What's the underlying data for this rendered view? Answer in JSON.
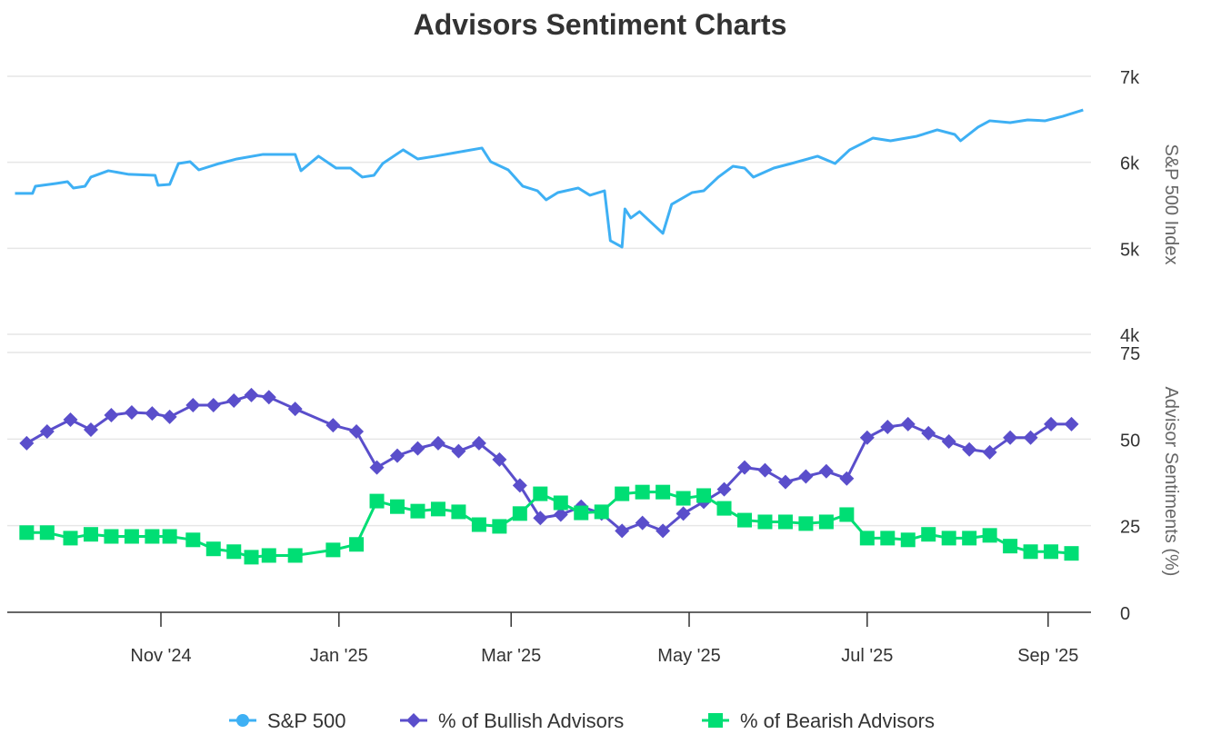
{
  "chart_data": {
    "type": "line",
    "title": "Advisors Sentiment Charts",
    "x_unit": "days since 2024-11-01",
    "x_ticks": [
      {
        "day": 0,
        "label": "Nov '24"
      },
      {
        "day": 61,
        "label": "Jan '25"
      },
      {
        "day": 120,
        "label": "Mar '25"
      },
      {
        "day": 181,
        "label": "May '25"
      },
      {
        "day": 242,
        "label": "Jul '25"
      },
      {
        "day": 304,
        "label": "Sep '25"
      }
    ],
    "panels": [
      {
        "ylabel": "S&P 500 Index",
        "ylim": [
          4000,
          7000
        ],
        "y_ticks": [
          {
            "v": 7000,
            "label": "7k"
          },
          {
            "v": 6000,
            "label": "6k"
          },
          {
            "v": 5000,
            "label": "5k"
          },
          {
            "v": 4000,
            "label": "4k"
          }
        ],
        "series": [
          {
            "name": "S&P 500",
            "color": "#3eb0f4",
            "marker": "none",
            "x": [
              -50,
              -44,
              -43,
              -36,
              -32,
              -30,
              -26,
              -24,
              -18,
              -11,
              -2,
              -1,
              3,
              6,
              10,
              13,
              20,
              26,
              35,
              46,
              48,
              54,
              60,
              65,
              69,
              73,
              76,
              83,
              88,
              94,
              101,
              110,
              113,
              119,
              124,
              129,
              132,
              136,
              143,
              147,
              152,
              154,
              158,
              159,
              161,
              164,
              168,
              172,
              175,
              182,
              186,
              191,
              196,
              200,
              203,
              210,
              216,
              225,
              231,
              236,
              244,
              250,
              259,
              266,
              272,
              274,
              280,
              284,
              291,
              297,
              303,
              309,
              316
            ],
            "values": [
              5638,
              5638,
              5722,
              5754,
              5775,
              5701,
              5722,
              5828,
              5902,
              5860,
              5849,
              5733,
              5743,
              5986,
              6007,
              5912,
              5986,
              6039,
              6092,
              6092,
              5902,
              6071,
              5933,
              5933,
              5828,
              5849,
              5986,
              6145,
              6039,
              6071,
              6113,
              6166,
              6007,
              5912,
              5722,
              5669,
              5564,
              5648,
              5701,
              5617,
              5669,
              5089,
              5015,
              5458,
              5353,
              5427,
              5300,
              5174,
              5511,
              5648,
              5669,
              5828,
              5954,
              5933,
              5828,
              5933,
              5986,
              6071,
              5986,
              6145,
              6282,
              6250,
              6303,
              6377,
              6324,
              6250,
              6409,
              6483,
              6461,
              6493,
              6483,
              6535,
              6609
            ]
          }
        ]
      },
      {
        "ylabel": "Advisor Sentiments (%)",
        "ylim": [
          0,
          75
        ],
        "y_ticks": [
          {
            "v": 75,
            "label": "75"
          },
          {
            "v": 50,
            "label": "50"
          },
          {
            "v": 25,
            "label": "25"
          },
          {
            "v": 0,
            "label": "0"
          }
        ],
        "x": [
          -46,
          -39,
          -31,
          -24,
          -17,
          -10,
          -3,
          3,
          11,
          18,
          25,
          31,
          37,
          46,
          59,
          67,
          74,
          81,
          88,
          95,
          102,
          109,
          116,
          123,
          130,
          137,
          144,
          151,
          158,
          165,
          172,
          179,
          186,
          193,
          200,
          207,
          214,
          221,
          228,
          235,
          242,
          249,
          256,
          263,
          270,
          277,
          284,
          291,
          298,
          305,
          312
        ],
        "series": [
          {
            "name": "% of Bullish Advisors",
            "color": "#5a4ecb",
            "marker": "diamond",
            "values": [
              48.8,
              52.2,
              55.6,
              52.7,
              56.9,
              57.7,
              57.4,
              56.4,
              59.8,
              59.8,
              61.1,
              62.7,
              62.1,
              58.7,
              54.0,
              52.2,
              41.8,
              45.2,
              47.3,
              48.8,
              46.5,
              48.8,
              44.1,
              36.6,
              27.2,
              28.2,
              30.5,
              28.5,
              23.5,
              25.8,
              23.5,
              28.5,
              31.9,
              35.5,
              41.8,
              41.0,
              37.6,
              39.2,
              40.7,
              38.6,
              50.4,
              53.5,
              54.3,
              51.7,
              49.3,
              47.0,
              46.2,
              50.4,
              50.4,
              54.3,
              54.3
            ]
          },
          {
            "name": "% of Bearish Advisors",
            "color": "#00de74",
            "marker": "square",
            "values": [
              23.0,
              23.0,
              21.4,
              22.5,
              21.9,
              21.9,
              21.9,
              21.9,
              20.9,
              18.3,
              17.5,
              15.9,
              16.4,
              16.4,
              18.0,
              19.6,
              32.1,
              30.5,
              29.2,
              29.8,
              29.0,
              25.3,
              24.8,
              28.5,
              34.2,
              31.6,
              28.7,
              29.0,
              34.2,
              34.7,
              34.7,
              32.9,
              33.7,
              30.0,
              26.6,
              26.1,
              26.1,
              25.6,
              26.1,
              28.2,
              21.4,
              21.4,
              20.9,
              22.5,
              21.4,
              21.4,
              22.2,
              19.1,
              17.5,
              17.5,
              17.0
            ]
          }
        ]
      }
    ],
    "legend": {
      "placement": "bottom-center",
      "entries": [
        "S&P 500",
        "% of Bullish Advisors",
        "% of Bearish Advisors"
      ]
    }
  }
}
